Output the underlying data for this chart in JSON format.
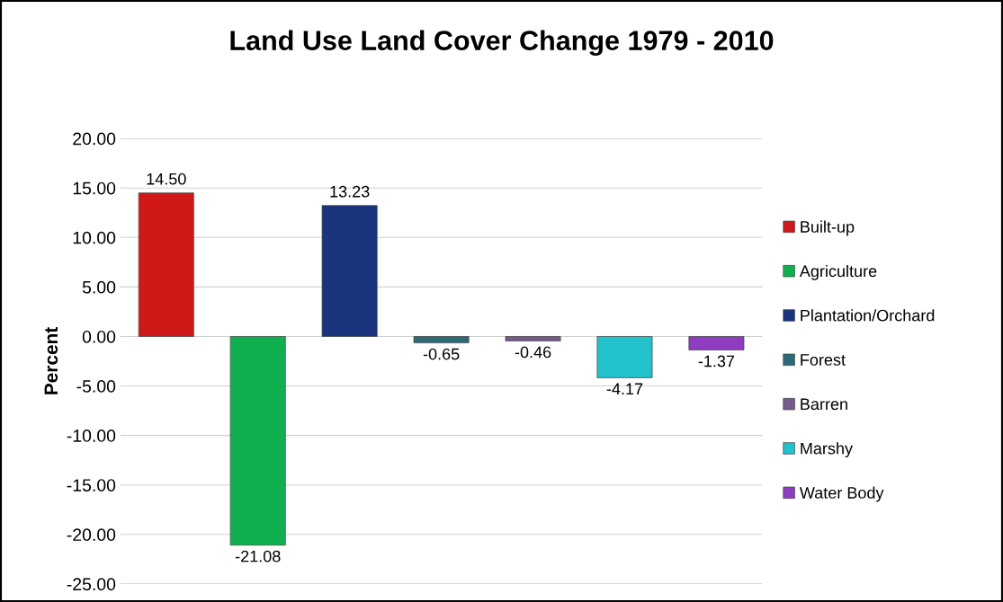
{
  "chart_data": {
    "type": "bar",
    "title": "Land Use Land Cover Change 1979 - 2010",
    "ylabel": "Percent",
    "categories": [
      null,
      null,
      null,
      null,
      null,
      null,
      null
    ],
    "series": [
      {
        "name": "Built-up",
        "color": "#d01818",
        "values": [
          14.5,
          null,
          null,
          null,
          null,
          null,
          null
        ],
        "value_labels": [
          "14.50",
          null,
          null,
          null,
          null,
          null,
          null
        ]
      },
      {
        "name": "Agriculture",
        "color": "#10b050",
        "values": [
          null,
          -21.08,
          null,
          null,
          null,
          null,
          null
        ],
        "value_labels": [
          null,
          "-21.08",
          null,
          null,
          null,
          null,
          null
        ]
      },
      {
        "name": "Plantation/Orchard",
        "color": "#1a347e",
        "values": [
          null,
          null,
          13.23,
          null,
          null,
          null,
          null
        ],
        "value_labels": [
          null,
          null,
          "13.23",
          null,
          null,
          null,
          null
        ]
      },
      {
        "name": "Forest",
        "color": "#2c6a76",
        "values": [
          null,
          null,
          null,
          -0.65,
          null,
          null,
          null
        ],
        "value_labels": [
          null,
          null,
          null,
          "-0.65",
          null,
          null,
          null
        ]
      },
      {
        "name": "Barren",
        "color": "#775a8a",
        "values": [
          null,
          null,
          null,
          null,
          -0.46,
          null,
          null
        ],
        "value_labels": [
          null,
          null,
          null,
          null,
          "-0.46",
          null,
          null
        ]
      },
      {
        "name": "Marshy",
        "color": "#22c2cc",
        "values": [
          null,
          null,
          null,
          null,
          null,
          -4.17,
          null
        ],
        "value_labels": [
          null,
          null,
          null,
          null,
          null,
          "-4.17",
          null
        ]
      },
      {
        "name": "Water Body",
        "color": "#8e3cc0",
        "values": [
          null,
          null,
          null,
          null,
          null,
          null,
          -1.37
        ],
        "value_labels": [
          null,
          null,
          null,
          null,
          null,
          null,
          "-1.37"
        ]
      }
    ],
    "ylim": [
      -25,
      20
    ],
    "yticks": [
      {
        "value": -25,
        "label": "-25.00"
      },
      {
        "value": -20,
        "label": "-20.00"
      },
      {
        "value": -15,
        "label": "-15.00"
      },
      {
        "value": -10,
        "label": "-10.00"
      },
      {
        "value": -5,
        "label": "-5.00"
      },
      {
        "value": 0,
        "label": "0.00"
      },
      {
        "value": 5,
        "label": "5.00"
      },
      {
        "value": 10,
        "label": "10.00"
      },
      {
        "value": 15,
        "label": "15.00"
      },
      {
        "value": 20,
        "label": "20.00"
      }
    ],
    "grid": "y",
    "legend": "right",
    "tick_labels": "y"
  }
}
